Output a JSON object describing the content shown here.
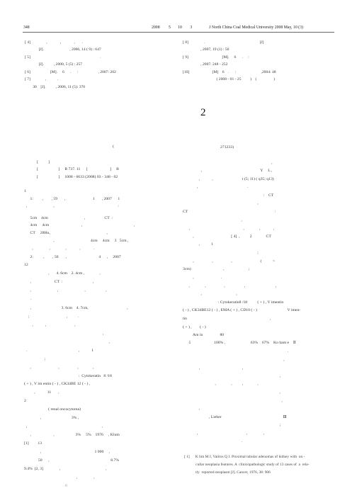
{
  "header": {
    "page_no": "348",
    "date_year": "2008",
    "date_nums": "5       10        3",
    "journal": "J North China Coal Medical University 2008 May, 10 (3)"
  },
  "refs_left": [
    "[ 4]                ,             ,             ,       .",
    "              [J].                          , 2006, 14 ( 9) : 647",
    "[ 5]                                                                      .",
    "              [J].          , 2000, 5 (5) : 257",
    "[ 6]                    [M].     6      .      :                    , 2007: 202",
    "[ 7]               ,           .",
    "        30    [J].          , 2006, 11 (5): 370"
  ],
  "refs_right": [
    "[ 8]                .                                                       [J]",
    "                  , 2007, 19 (1) : 50",
    "[ 9]                                  [M].     6      .     :",
    "                  , 2007. 248 - 252",
    "[10]                       [M]    6    .      :                         ,2004: 48",
    "                                  ( 2008 - 01 - 25         )    (                 )"
  ],
  "article_no": "2",
  "affil": "(",
  "affil_code": "271233)",
  "abstract": [
    "[          ]",
    "[                    ]     R 737. 11      [                      ]     B",
    "[                    ]     1008 - 6633 (2008) 03 - 348 - 02"
  ],
  "left_body": [
    "1",
    "      1:         ,        , 59       ,                           1       , 2007      1",
    "  ,                          ,                                                               :",
    "      5cm    4cm                                    ,                   CT  :",
    "      4cm     4cm                                ,                                                   ,",
    "      CT     28Hu,                                                        ,",
    "                             ,                                    4cm     4cm     3   5cm ,",
    "        ,                ,               ,             ,             .",
    "      2:          ,        , 50       ,                                4      ,     2007",
    "12",
    "                        ,       4. 6cm    2. 4cm ,               ,",
    "      ,                       CT  :                              ,",
    "      ,                          ,                          ,                    ,",
    "      .",
    "      ,                              3. 6cm    4. 7cm,                                      ,",
    "    ;                                     ,          .",
    "        ,            ,                            ,",
    "                                                                              ,",
    "                                                                                    ,",
    "  .                                                   ,            1",
    "                    ;",
    "      ,                           ,                  ,              ,",
    "                                                      :  Cytokeratin   8 /18",
    "( + ) , V im entin ( - ) , CK34BE 12 ( - ) ,",
    "          ,            11       ,",
    "2",
    "                        ( renal oncocytoma)",
    "                ,                              3% ,",
    "  ,                                                                          ,",
    "      ,                      ,                     3%     5%    1976     , Klum",
    "[1]         13",
    "                ,                                                     1 000     ,",
    "              50      ,                                                             8.7%",
    "9.4%  [2, 3]                ,                                             ,",
    "                                                    ,                ,"
  ],
  "right_body": [
    "                                                                                        ,",
    "                  ,                                                          Y     L ,",
    "                ,            ,                             t (5; 11) ( q35; q13)",
    "              ,                                                 .",
    "                                                                                :    CT",
    "                                                                          ,",
    "CT                                                                                      :",
    "                                                          ,",
    "      ,                                                     ,               ,             ,",
    "          ,                                     [ 4]  ,          2              CT",
    "                ,           1",
    "                                                                          ;",
    "          ,                  ,                  ,                            (           >",
    "3cm)                                ,                        ;",
    "          ,                           .",
    "      ,               ,                  ,                   ,                              ,",
    "                  ,                                  ,",
    "                                   : Cytokeratin8 /18          ( + ) , V imentin",
    "( - ) , CK34BE12 ( - ) , EMA ( + ) , CD10 ( - )                              V imen-",
    "tin                                                                                  ,",
    "( + ) ,        ( - )",
    "          Am in                 80",
    "      5                       100% ,                         63%    67%    Ko bam e    Ⅱ",
    "                                                                                                        .",
    "                                                                                                    ,",
    "                ,                                          ,",
    "                                                                                                ,",
    "                                ,               ,          ,              ,",
    "                                                                                                ,",
    "                                                                                                  ,",
    "                ,",
    "                          , Lieber                                                             Ⅲ",
    "                                                                                                ;",
    "              ,                                                ,                ,",
    "                                                          ."
  ],
  "footref": [
    "[ 1]      K lim M J, Vailros Q J. Proximal tubular adenomas of kidney with  on -",
    "            cullar neoplasia features. A  clinicopathologic study of 13 cases of  a  rela-",
    "            tly  reported neoplasm [J]. Cancer, 1976, 38: 906"
  ],
  "page_bottom": "8"
}
